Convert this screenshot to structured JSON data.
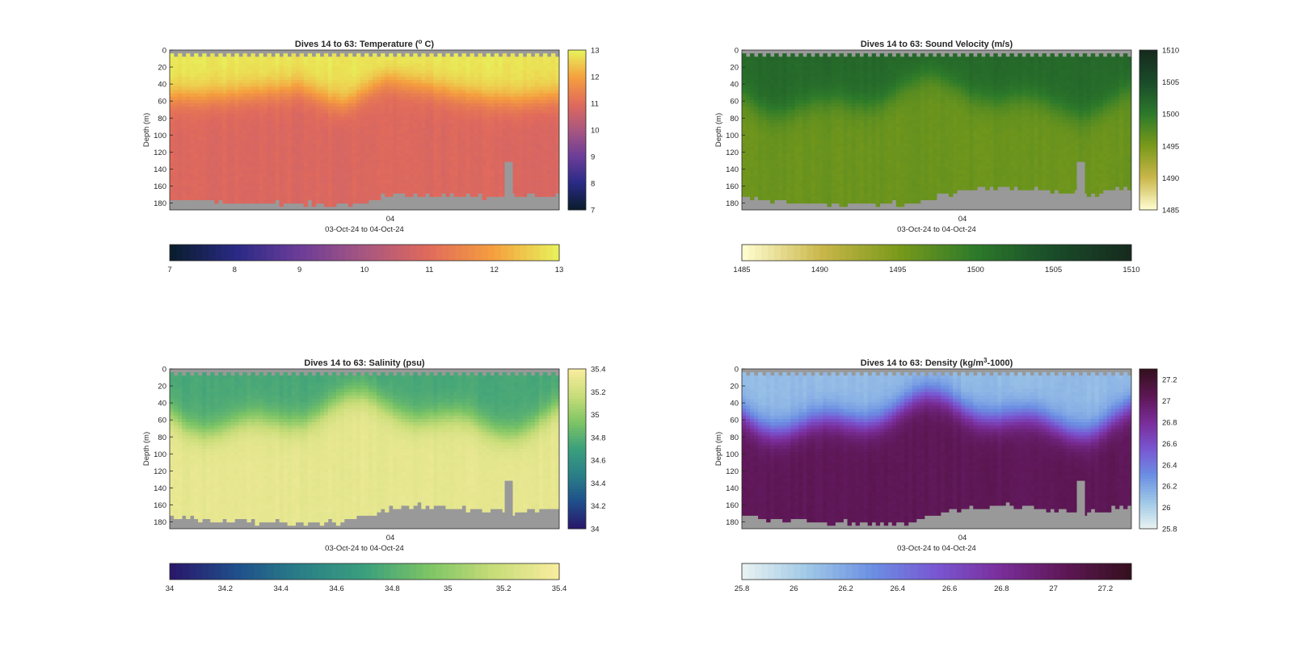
{
  "chart_data": [
    {
      "type": "heatmap",
      "id": "temperature",
      "title": "Dives 14 to 63: Temperature (",
      "title_sup": "o",
      "title_end": " C)",
      "ylabel": "Depth (m)",
      "xlabel": "03-Oct-24 to 04-Oct-24",
      "x_ticks": [
        "04"
      ],
      "y_ticks": [
        "0",
        "20",
        "40",
        "60",
        "80",
        "100",
        "120",
        "140",
        "160",
        "180"
      ],
      "ylim": [
        0,
        188
      ],
      "colormap": "thermal",
      "clim": [
        7,
        13
      ],
      "colorbar_ticks": [
        "7",
        "8",
        "9",
        "10",
        "11",
        "12",
        "13"
      ],
      "layers": [
        {
          "description": "surface",
          "depth_top": [
            15,
            15,
            15,
            15,
            12,
            10,
            10,
            8,
            8,
            10
          ],
          "value": 12.9
        },
        {
          "description": "thermocline",
          "depth_mid": [
            55,
            55,
            50,
            45,
            65,
            35,
            45,
            55,
            60,
            55
          ]
        },
        {
          "description": "deep",
          "value": 10.9
        }
      ],
      "seafloor_depth": [
        177,
        178,
        180,
        180,
        183,
        172,
        168,
        172,
        172,
        170
      ]
    },
    {
      "type": "heatmap",
      "id": "sound_velocity",
      "title": "Dives 14 to 63: Sound Velocity (m/s)",
      "ylabel": "Depth (m)",
      "xlabel": "03-Oct-24 to 04-Oct-24",
      "x_ticks": [
        "04"
      ],
      "y_ticks": [
        "0",
        "20",
        "40",
        "60",
        "80",
        "100",
        "120",
        "140",
        "160",
        "180"
      ],
      "ylim": [
        0,
        188
      ],
      "colormap": "speed",
      "clim": [
        1485,
        1510
      ],
      "colorbar_ticks": [
        "1485",
        "1490",
        "1495",
        "1500",
        "1505",
        "1510"
      ],
      "surface_value": 1502,
      "deep_value": 1496,
      "seafloor_depth": [
        173,
        178,
        180,
        182,
        180,
        165,
        160,
        165,
        170,
        162
      ]
    },
    {
      "type": "heatmap",
      "id": "salinity",
      "title": "Dives 14 to 63: Salinity (psu)",
      "ylabel": "Depth (m)",
      "xlabel": "03-Oct-24 to 04-Oct-24",
      "x_ticks": [
        "04"
      ],
      "y_ticks": [
        "0",
        "20",
        "40",
        "60",
        "80",
        "100",
        "120",
        "140",
        "160",
        "180"
      ],
      "ylim": [
        0,
        188
      ],
      "colormap": "haline",
      "clim": [
        34,
        35.4
      ],
      "colorbar_ticks": [
        "34",
        "34.2",
        "34.4",
        "34.6",
        "34.8",
        "35",
        "35.2",
        "35.4"
      ],
      "surface_value": 34.75,
      "deep_value": 35.32,
      "seafloor_depth": [
        173,
        178,
        180,
        182,
        180,
        165,
        160,
        165,
        170,
        162
      ]
    },
    {
      "type": "heatmap",
      "id": "density",
      "title": "Dives 14 to 63: Density (kg/m",
      "title_sup": "3",
      "title_end": "-1000)",
      "ylabel": "Depth (m)",
      "xlabel": "03-Oct-24 to 04-Oct-24",
      "x_ticks": [
        "04"
      ],
      "y_ticks": [
        "0",
        "20",
        "40",
        "60",
        "80",
        "100",
        "120",
        "140",
        "160",
        "180"
      ],
      "ylim": [
        0,
        188
      ],
      "colormap": "dense",
      "clim": [
        25.8,
        27.3
      ],
      "colorbar_ticks": [
        "25.8",
        "26",
        "26.2",
        "26.4",
        "26.6",
        "26.8",
        "27",
        "27.2"
      ],
      "surface_value": 26.1,
      "deep_value": 27.05,
      "seafloor_depth": [
        173,
        178,
        180,
        182,
        180,
        165,
        160,
        165,
        170,
        162
      ]
    }
  ],
  "colormaps": {
    "thermal": [
      "#0a1d2e",
      "#2a2a86",
      "#6c3d98",
      "#a85680",
      "#e06a5c",
      "#f59e3e",
      "#e8ef5a"
    ],
    "speed": [
      "#fefccd",
      "#c9b64a",
      "#7a9a1a",
      "#2d7a2a",
      "#1a4d2a",
      "#162b1e"
    ],
    "haline": [
      "#29186b",
      "#1f4f8b",
      "#2a7f87",
      "#3a9f7d",
      "#7cc465",
      "#c6dc78",
      "#f7ec9c"
    ],
    "dense": [
      "#e6f1f1",
      "#9ec7e6",
      "#6b8fe3",
      "#7956d2",
      "#7a2e9a",
      "#5e1756",
      "#36101f"
    ]
  },
  "missing_color": "#999999"
}
